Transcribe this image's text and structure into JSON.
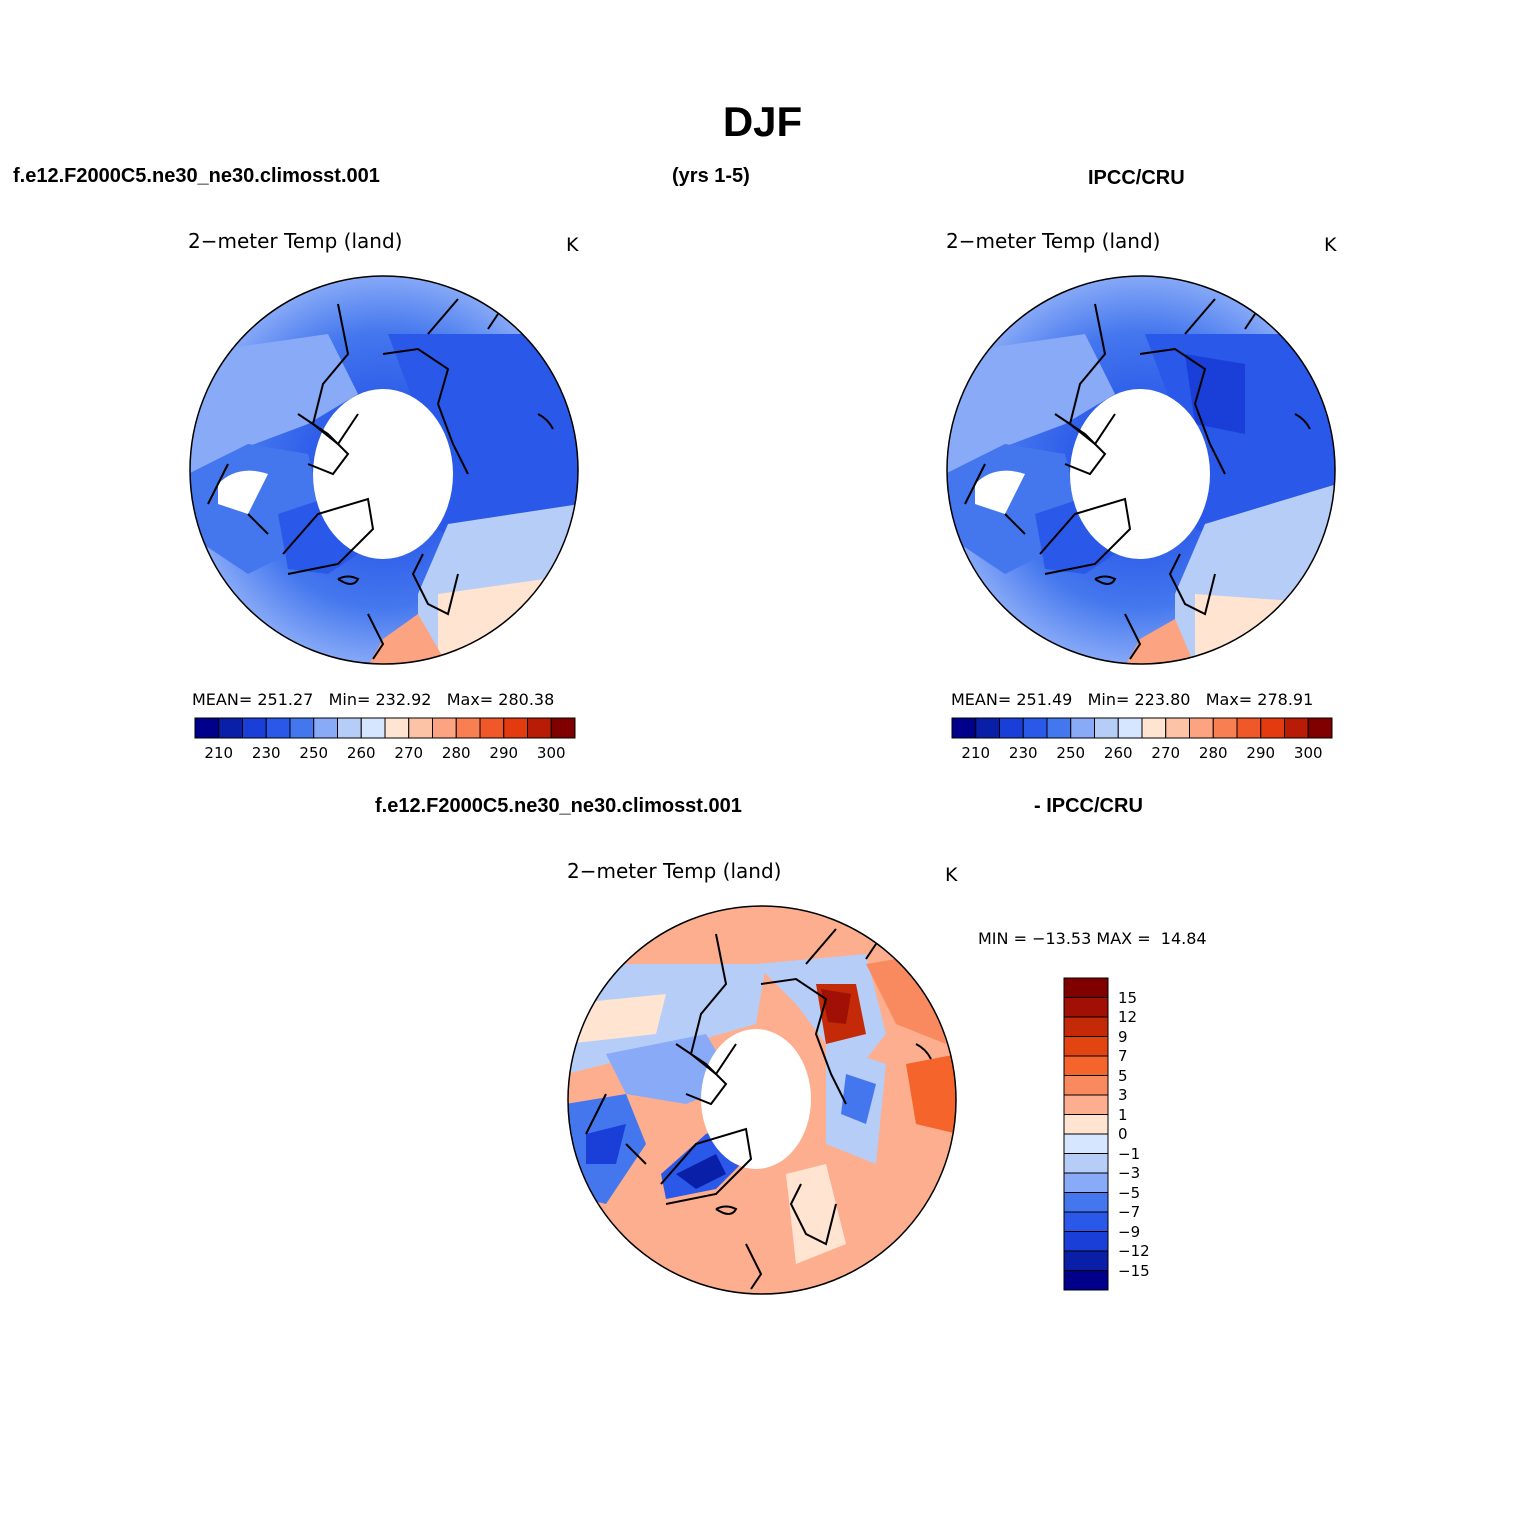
{
  "title": "DJF",
  "header": {
    "case_left": "f.e12.F2000C5.ne30_ne30.climosst.001",
    "years": "(yrs 1-5)",
    "obs_right": "IPCC/CRU",
    "diff_case": "f.e12.F2000C5.ne30_ne30.climosst.001",
    "diff_obs": "- IPCC/CRU"
  },
  "chart_data": [
    {
      "type": "heatmap",
      "projection": "north polar stereographic",
      "title": "2−meter Temp (land)",
      "units": "K",
      "stats": {
        "mean_label": "MEAN=",
        "mean": "251.27",
        "min_label": "Min=",
        "min": "232.92",
        "max_label": "Max=",
        "max": "280.38"
      },
      "colorbar": {
        "orientation": "horizontal",
        "levels": [
          210,
          220,
          230,
          240,
          250,
          255,
          260,
          265,
          270,
          275,
          280,
          285,
          290,
          295,
          300
        ],
        "tick_labels": [
          "210",
          "230",
          "250",
          "260",
          "270",
          "280",
          "290",
          "300"
        ],
        "colors": [
          "#00008b",
          "#0a1fa8",
          "#1a3fd8",
          "#2a58e8",
          "#4477ee",
          "#88aaf7",
          "#b6cdf8",
          "#d6e6ff",
          "#ffe4d2",
          "#fdc3a6",
          "#fca381",
          "#f77f52",
          "#f0582a",
          "#e33a10",
          "#b81c06",
          "#800000"
        ]
      }
    },
    {
      "type": "heatmap",
      "projection": "north polar stereographic",
      "title": "2−meter Temp (land)",
      "units": "K",
      "stats": {
        "mean_label": "MEAN=",
        "mean": "251.49",
        "min_label": "Min=",
        "min": "223.80",
        "max_label": "Max=",
        "max": "278.91"
      },
      "colorbar": {
        "orientation": "horizontal",
        "levels": [
          210,
          220,
          230,
          240,
          250,
          255,
          260,
          265,
          270,
          275,
          280,
          285,
          290,
          295,
          300
        ],
        "tick_labels": [
          "210",
          "230",
          "250",
          "260",
          "270",
          "280",
          "290",
          "300"
        ],
        "colors": [
          "#00008b",
          "#0a1fa8",
          "#1a3fd8",
          "#2a58e8",
          "#4477ee",
          "#88aaf7",
          "#b6cdf8",
          "#d6e6ff",
          "#ffe4d2",
          "#fdc3a6",
          "#fca381",
          "#f77f52",
          "#f0582a",
          "#e33a10",
          "#b81c06",
          "#800000"
        ]
      }
    },
    {
      "type": "heatmap",
      "projection": "north polar stereographic",
      "title": "2−meter Temp (land)",
      "units": "K",
      "stats": {
        "min_label": "MIN =",
        "min": "−13.53",
        "max_label": "MAX =",
        "max": "14.84"
      },
      "colorbar": {
        "orientation": "vertical",
        "tick_labels": [
          "15",
          "12",
          "9",
          "7",
          "5",
          "3",
          "1",
          "0",
          "−1",
          "−3",
          "−5",
          "−7",
          "−9",
          "−12",
          "−15"
        ],
        "colors": [
          "#800000",
          "#a01004",
          "#c42a08",
          "#e2450f",
          "#f5642b",
          "#f98a60",
          "#fcae8e",
          "#ffe4d2",
          "#d6e6ff",
          "#b6cdf8",
          "#88aaf7",
          "#4477ee",
          "#2a58e8",
          "#1a3fd8",
          "#0a1fa8",
          "#00008b"
        ]
      }
    }
  ]
}
